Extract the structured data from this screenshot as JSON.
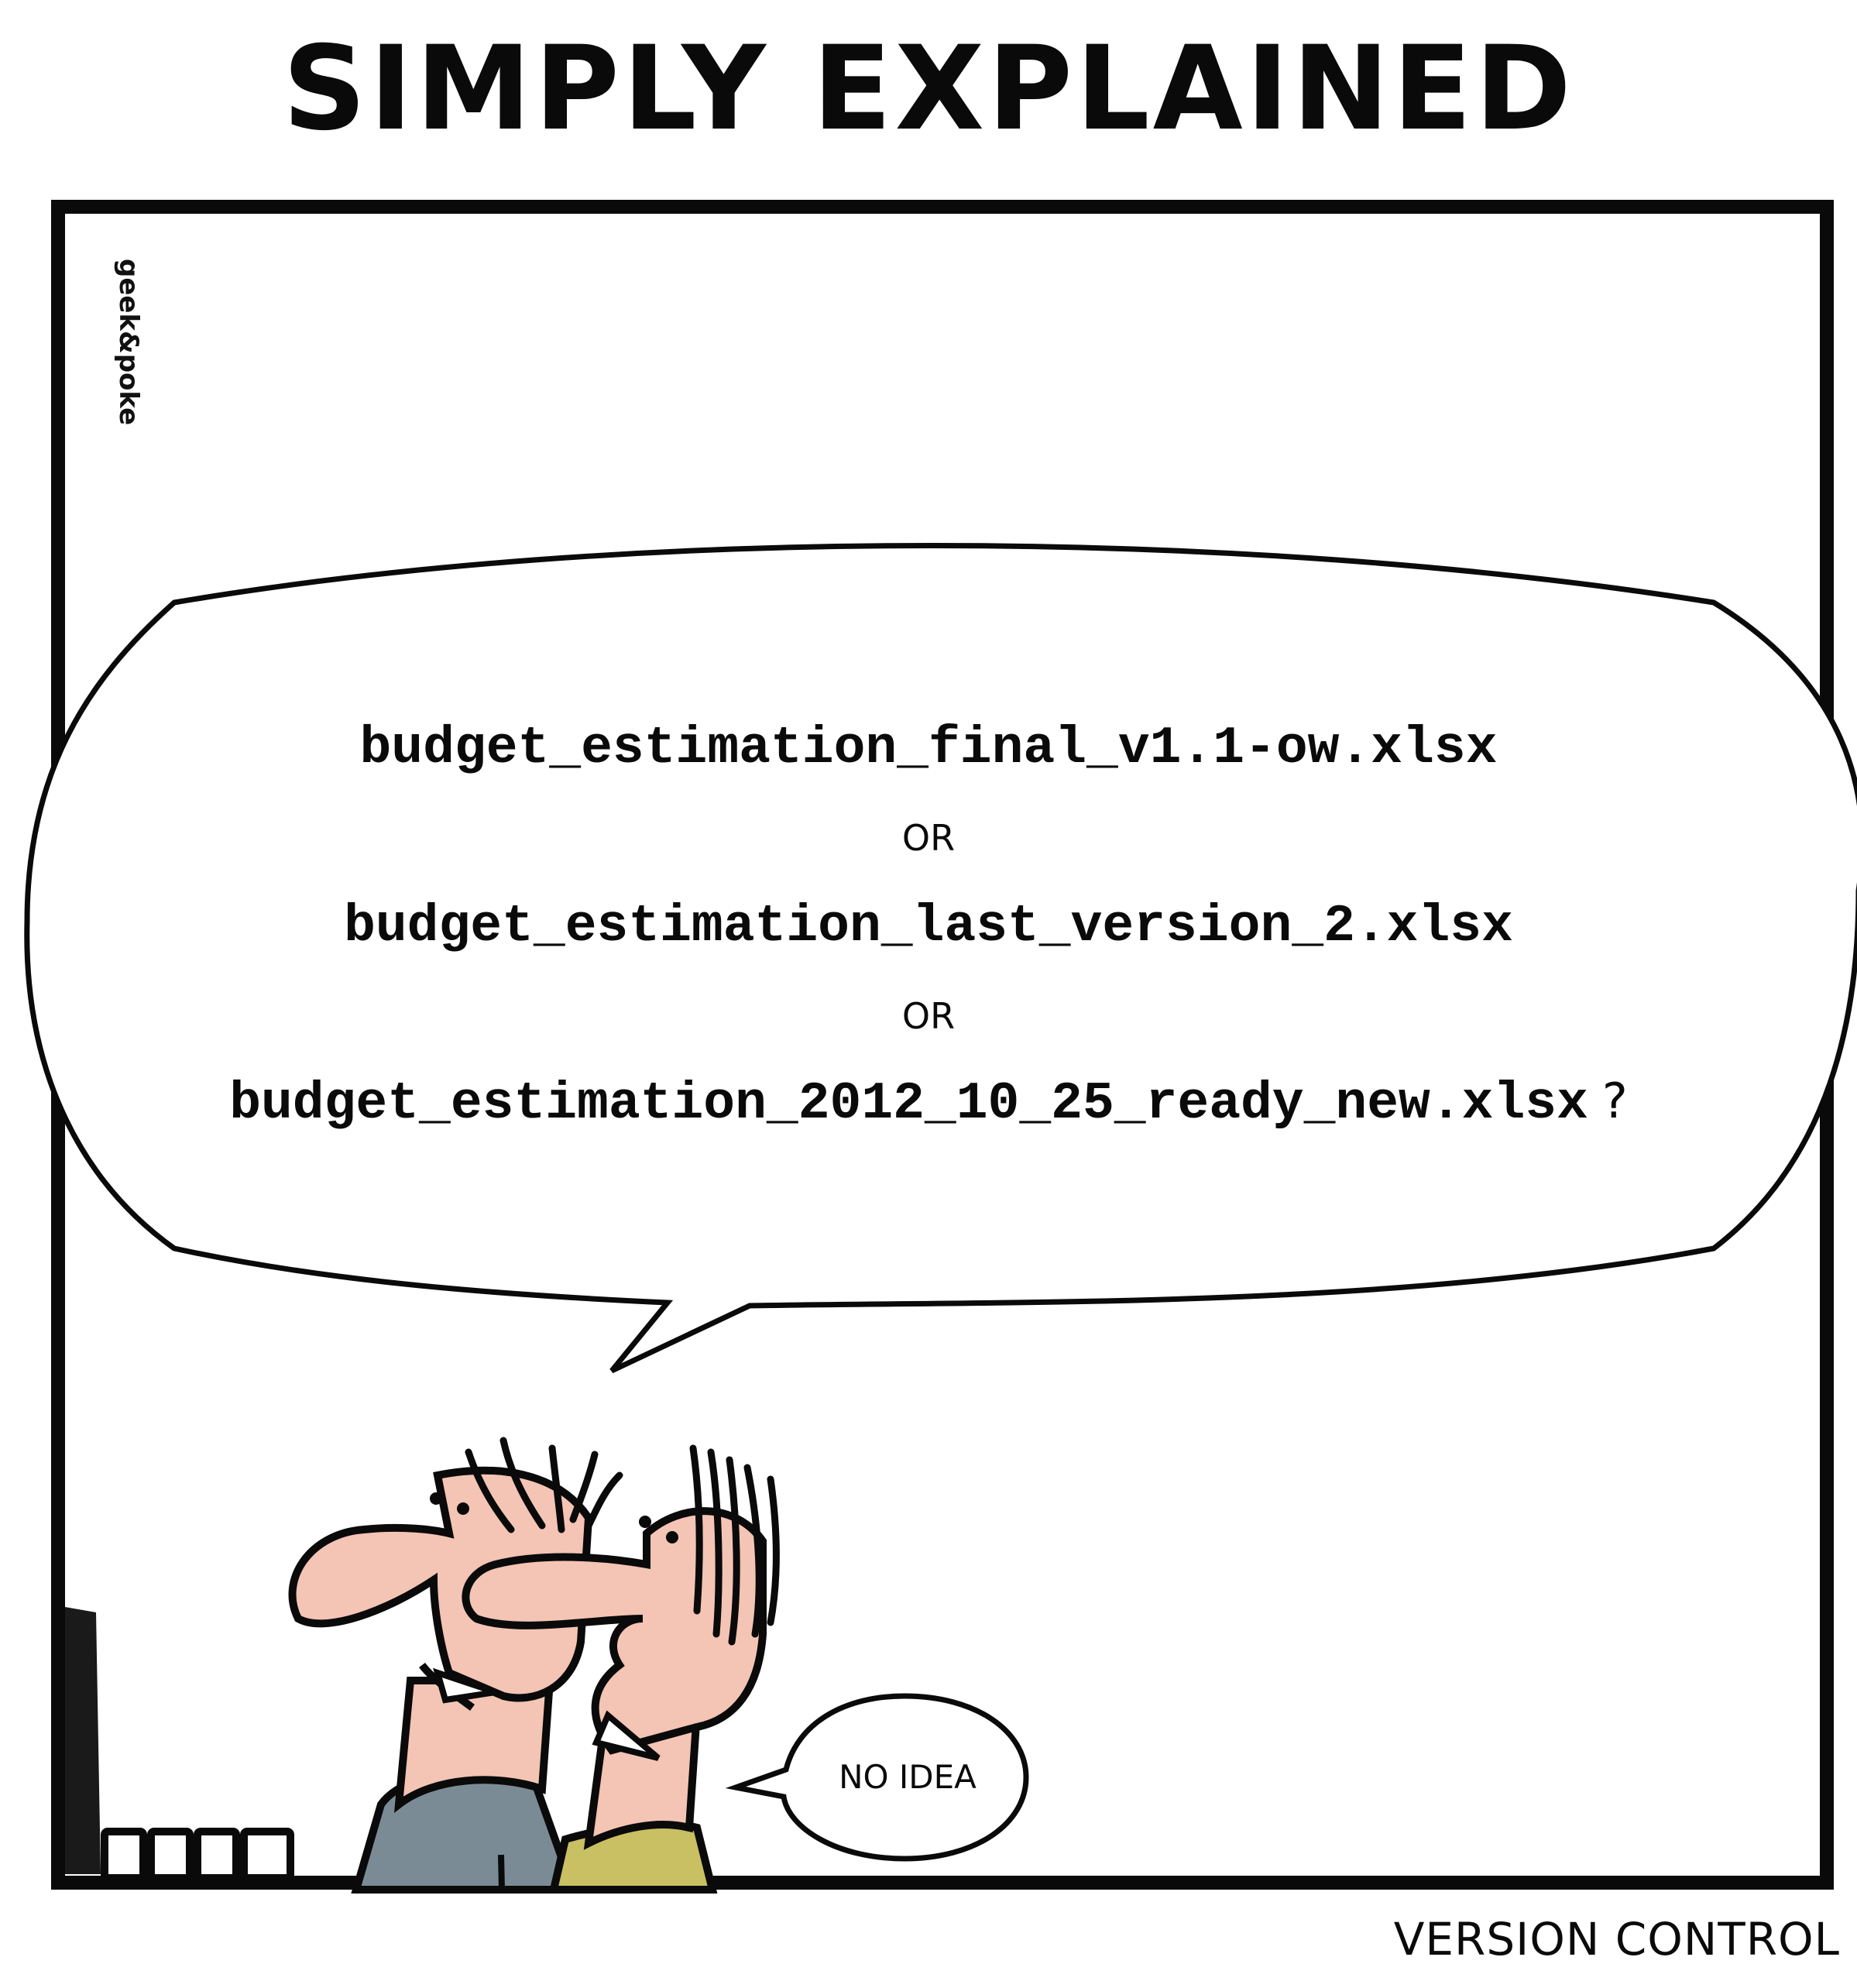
{
  "comic": {
    "title": "SIMPLY EXPLAINED",
    "credit": "geek&poke",
    "question": {
      "option_1": "budget_estimation_final_v1.1-ow.xlsx",
      "or_1": "OR",
      "option_2": "budget_estimation_last_version_2.xlsx",
      "or_2": "OR",
      "option_3": "budget_estimation_2012_10_25_ready_new.xlsx",
      "question_mark": "?"
    },
    "answer": "NO IDEA",
    "footer": "VERSION CONTROL"
  },
  "colors": {
    "ink": "#0a0a0a",
    "skin": "#f4c4b4",
    "shirt_grey": "#7b8b95",
    "shirt_olive": "#c9bf63",
    "monitor": "#1a1a1a"
  }
}
